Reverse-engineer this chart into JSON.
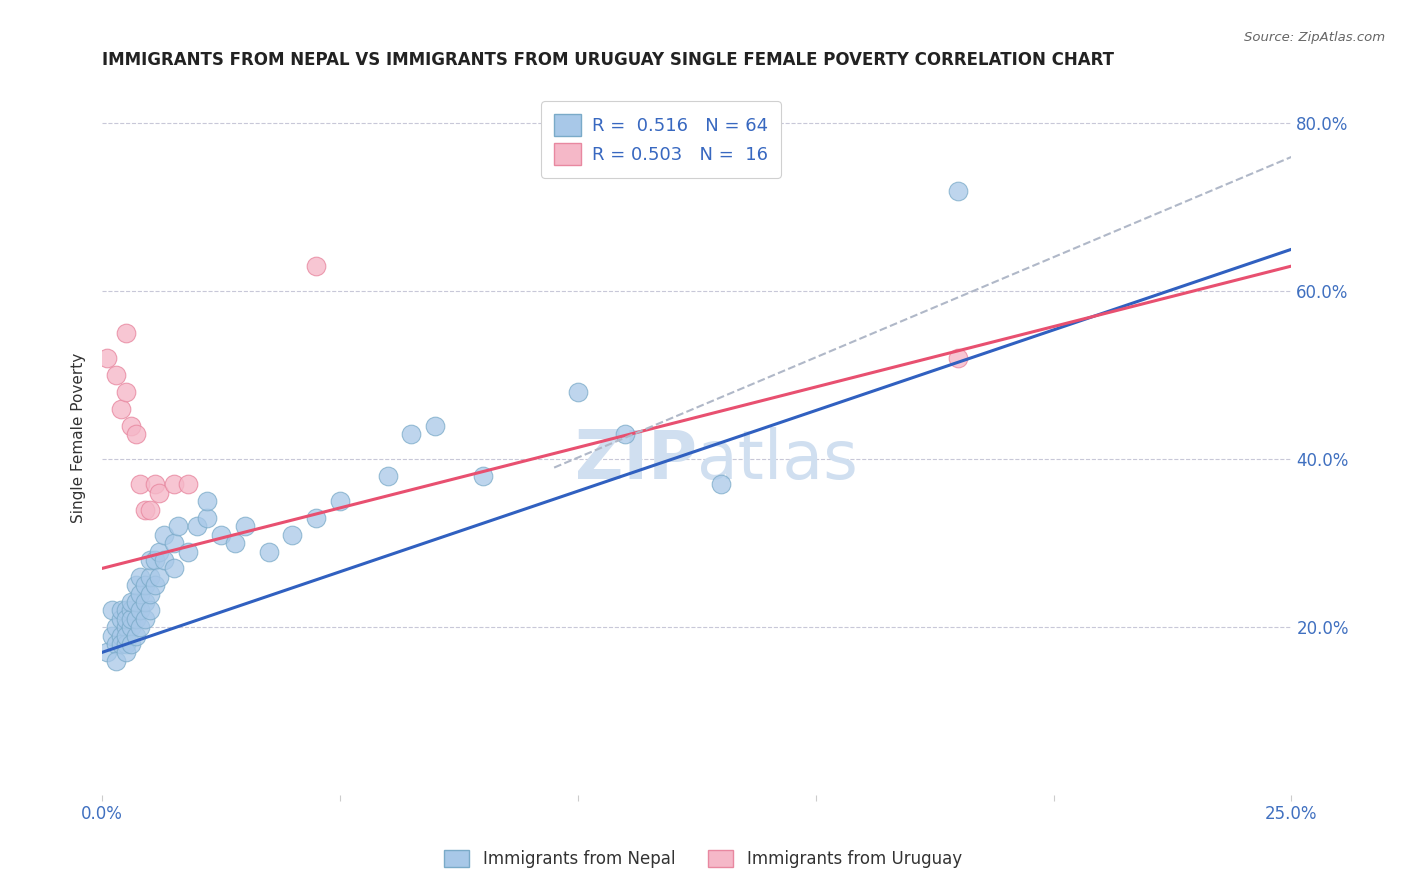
{
  "title": "IMMIGRANTS FROM NEPAL VS IMMIGRANTS FROM URUGUAY SINGLE FEMALE POVERTY CORRELATION CHART",
  "source": "Source: ZipAtlas.com",
  "ylabel": "Single Female Poverty",
  "xlim": [
    0.0,
    0.25
  ],
  "ylim": [
    0.0,
    0.85
  ],
  "x_ticks": [
    0.0,
    0.05,
    0.1,
    0.15,
    0.2,
    0.25
  ],
  "x_tick_labels": [
    "0.0%",
    "",
    "",
    "",
    "",
    "25.0%"
  ],
  "y_ticks": [
    0.0,
    0.2,
    0.4,
    0.6,
    0.8
  ],
  "y_tick_labels": [
    "",
    "20.0%",
    "40.0%",
    "60.0%",
    "80.0%"
  ],
  "nepal_color": "#a8c8e8",
  "nepal_edge_color": "#7aaac8",
  "uruguay_color": "#f5b8c8",
  "uruguay_edge_color": "#e888a0",
  "nepal_line_color": "#3060c0",
  "uruguay_line_color": "#e85070",
  "trend_line_color": "#b0b8c8",
  "legend_nepal_label": "R =  0.516   N = 64",
  "legend_uruguay_label": "R = 0.503   N =  16",
  "watermark_zip": "ZIP",
  "watermark_atlas": "atlas",
  "watermark_color": "#d0dff0",
  "nepal_scatter_x": [
    0.001,
    0.002,
    0.002,
    0.003,
    0.003,
    0.003,
    0.004,
    0.004,
    0.004,
    0.004,
    0.005,
    0.005,
    0.005,
    0.005,
    0.005,
    0.005,
    0.006,
    0.006,
    0.006,
    0.006,
    0.006,
    0.007,
    0.007,
    0.007,
    0.007,
    0.008,
    0.008,
    0.008,
    0.008,
    0.009,
    0.009,
    0.009,
    0.01,
    0.01,
    0.01,
    0.01,
    0.011,
    0.011,
    0.012,
    0.012,
    0.013,
    0.013,
    0.015,
    0.015,
    0.016,
    0.018,
    0.02,
    0.022,
    0.022,
    0.025,
    0.028,
    0.03,
    0.035,
    0.04,
    0.045,
    0.05,
    0.06,
    0.065,
    0.07,
    0.08,
    0.1,
    0.11,
    0.13,
    0.18
  ],
  "nepal_scatter_y": [
    0.17,
    0.19,
    0.22,
    0.18,
    0.2,
    0.16,
    0.19,
    0.21,
    0.18,
    0.22,
    0.2,
    0.18,
    0.22,
    0.19,
    0.21,
    0.17,
    0.2,
    0.22,
    0.18,
    0.21,
    0.23,
    0.19,
    0.21,
    0.23,
    0.25,
    0.2,
    0.22,
    0.24,
    0.26,
    0.21,
    0.23,
    0.25,
    0.22,
    0.24,
    0.26,
    0.28,
    0.25,
    0.28,
    0.26,
    0.29,
    0.28,
    0.31,
    0.27,
    0.3,
    0.32,
    0.29,
    0.32,
    0.33,
    0.35,
    0.31,
    0.3,
    0.32,
    0.29,
    0.31,
    0.33,
    0.35,
    0.38,
    0.43,
    0.44,
    0.38,
    0.48,
    0.43,
    0.37,
    0.72
  ],
  "uruguay_scatter_x": [
    0.001,
    0.003,
    0.004,
    0.005,
    0.005,
    0.006,
    0.007,
    0.008,
    0.009,
    0.01,
    0.011,
    0.012,
    0.015,
    0.018,
    0.045,
    0.18
  ],
  "uruguay_scatter_y": [
    0.52,
    0.5,
    0.46,
    0.55,
    0.48,
    0.44,
    0.43,
    0.37,
    0.34,
    0.34,
    0.37,
    0.36,
    0.37,
    0.37,
    0.63,
    0.52
  ],
  "nepal_trend_x": [
    0.0,
    0.25
  ],
  "nepal_trend_y": [
    0.17,
    0.65
  ],
  "uruguay_trend_x": [
    0.0,
    0.25
  ],
  "uruguay_trend_y": [
    0.27,
    0.63
  ],
  "dashed_trend_x": [
    0.095,
    0.25
  ],
  "dashed_trend_y": [
    0.39,
    0.76
  ],
  "grid_color": "#c8c8d8",
  "background_color": "#ffffff",
  "title_fontsize": 12,
  "tick_label_color": "#4070c0",
  "legend_r_color": "#3868c0",
  "legend_n_color": "#3868c0",
  "bottom_legend_color": "#333333"
}
